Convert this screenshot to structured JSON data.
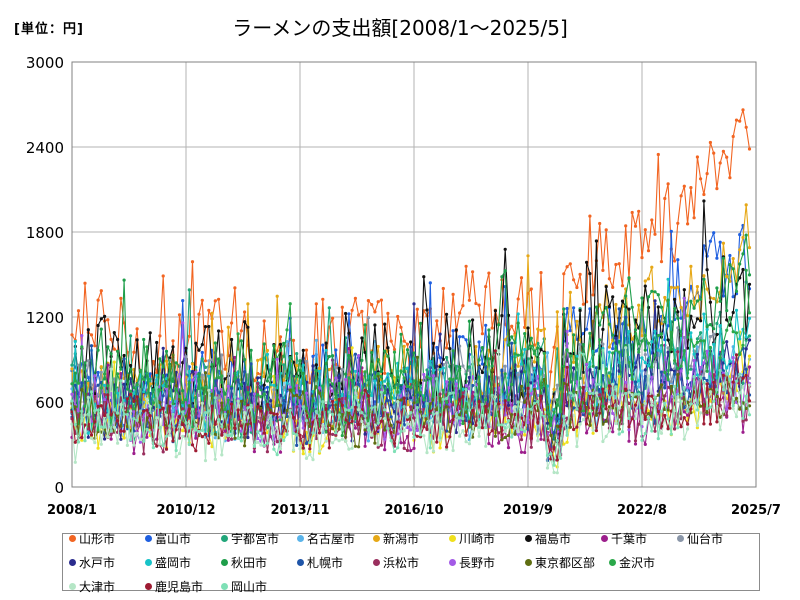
{
  "unit_label": "[単位：円]",
  "chart_data": {
    "type": "line",
    "title": "ラーメンの支出額[2008/1～2025/5]",
    "xlabel": "",
    "ylabel": "",
    "ylim": [
      0,
      3000
    ],
    "yticks": [
      0,
      600,
      1200,
      1800,
      2400,
      3000
    ],
    "xtick_labels": [
      "2008/1",
      "2010/12",
      "2013/11",
      "2016/10",
      "2019/9",
      "2022/8",
      "2025/7"
    ],
    "x_start": "2008/1",
    "x_end": "2025/7",
    "grid": true,
    "legend_position": "bottom",
    "series": [
      {
        "name": "山形市",
        "color": "#f26522",
        "base": 1000,
        "amp": 300,
        "end": 2500
      },
      {
        "name": "富山市",
        "color": "#1f5fe0",
        "base": 650,
        "amp": 250,
        "end": 1700
      },
      {
        "name": "宇都宮市",
        "color": "#21a67a",
        "base": 650,
        "amp": 250,
        "end": 1000
      },
      {
        "name": "名古屋市",
        "color": "#5ab4ea",
        "base": 550,
        "amp": 200,
        "end": 900
      },
      {
        "name": "新潟市",
        "color": "#e6a817",
        "base": 700,
        "amp": 250,
        "end": 1750
      },
      {
        "name": "川崎市",
        "color": "#f0e01c",
        "base": 450,
        "amp": 180,
        "end": 700
      },
      {
        "name": "福島市",
        "color": "#111111",
        "base": 850,
        "amp": 300,
        "end": 1300
      },
      {
        "name": "千葉市",
        "color": "#9c1e8c",
        "base": 450,
        "amp": 180,
        "end": 600
      },
      {
        "name": "仙台市",
        "color": "#8a96a8",
        "base": 650,
        "amp": 220,
        "end": 1000
      },
      {
        "name": "水戸市",
        "color": "#2a2c8e",
        "base": 600,
        "amp": 220,
        "end": 900
      },
      {
        "name": "盛岡市",
        "color": "#17c3c8",
        "base": 650,
        "amp": 220,
        "end": 1100
      },
      {
        "name": "秋田市",
        "color": "#1e9e4a",
        "base": 750,
        "amp": 250,
        "end": 1500
      },
      {
        "name": "札幌市",
        "color": "#1f55a8",
        "base": 550,
        "amp": 200,
        "end": 800
      },
      {
        "name": "浜松市",
        "color": "#9a2f5e",
        "base": 450,
        "amp": 170,
        "end": 650
      },
      {
        "name": "長野市",
        "color": "#a35ae6",
        "base": 550,
        "amp": 200,
        "end": 800
      },
      {
        "name": "東京都区部",
        "color": "#5f6e12",
        "base": 500,
        "amp": 170,
        "end": 700
      },
      {
        "name": "金沢市",
        "color": "#2aa84a",
        "base": 650,
        "amp": 220,
        "end": 1000
      },
      {
        "name": "大津市",
        "color": "#b5e6c6",
        "base": 400,
        "amp": 170,
        "end": 600
      },
      {
        "name": "鹿児島市",
        "color": "#9e1b32",
        "base": 450,
        "amp": 170,
        "end": 600
      },
      {
        "name": "岡山市",
        "color": "#7fe0b6",
        "base": 450,
        "amp": 170,
        "end": 650
      }
    ]
  }
}
